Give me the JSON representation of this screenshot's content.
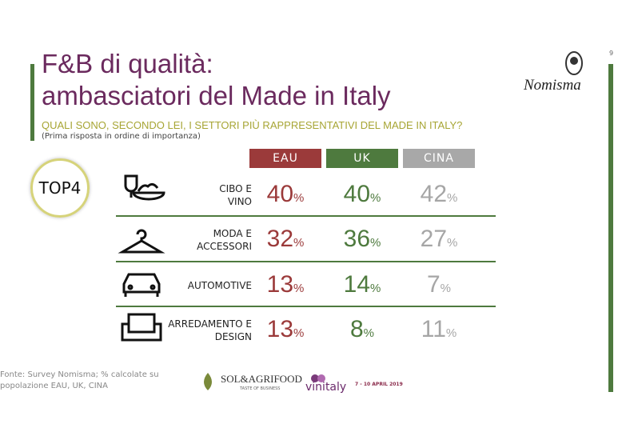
{
  "page_number": "9",
  "header": {
    "title_lines": [
      "F&B di qualità:",
      "ambasciatori del Made in Italy"
    ],
    "question": "QUALI SONO, SECONDO LEI, I SETTORI PIÙ RAPPRESENTATIVI DEL MADE IN ITALY?",
    "note": "(Prima risposta in ordine di importanza)"
  },
  "logo": "Nomisma",
  "badge": "TOP4",
  "table": {
    "unit": "%",
    "columns": [
      "EAU",
      "UK",
      "CINA"
    ],
    "rows": [
      {
        "label": [
          "CIBO E",
          "VINO"
        ],
        "values": [
          40,
          40,
          42
        ]
      },
      {
        "label": [
          "MODA E",
          "ACCESSORI"
        ],
        "values": [
          32,
          36,
          27
        ]
      },
      {
        "label": [
          "AUTOMOTIVE"
        ],
        "values": [
          13,
          14,
          7
        ]
      },
      {
        "label": [
          "ARREDAMENTO E",
          "DESIGN"
        ],
        "values": [
          13,
          8,
          11
        ]
      }
    ]
  },
  "source": "Fonte: Survey Nomisma; % calcolate su popolazione EAU, UK, CINA",
  "footer": {
    "sponsor": "SOL&AGRIFOOD",
    "sponsor_tagline": "TASTE OF BUSINESS",
    "event": "vinitaly",
    "dates": "7 - 10 APRIL 2019"
  }
}
